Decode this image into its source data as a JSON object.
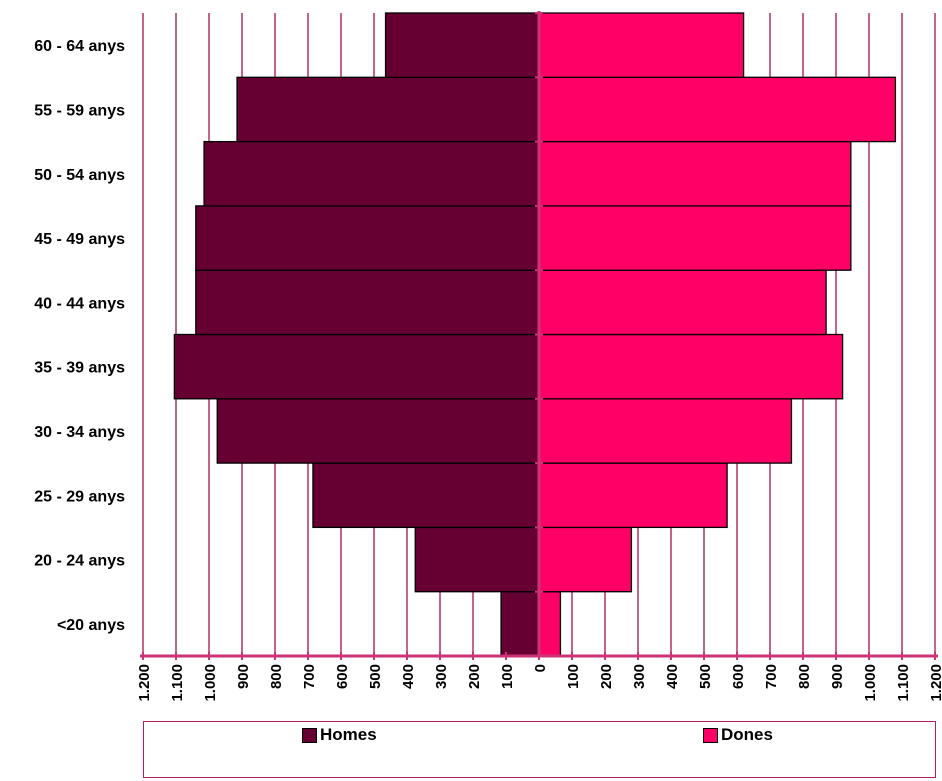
{
  "chart_data": {
    "type": "bar",
    "orientation": "horizontal",
    "chart_style": "population-pyramid",
    "categories": [
      "<20 anys",
      "20 - 24 anys",
      "25 - 29 anys",
      "30 - 34 anys",
      "35 - 39 anys",
      "40 - 44 anys",
      "45 - 49 anys",
      "50 - 54 anys",
      "55 - 59 anys",
      "60 - 64 anys"
    ],
    "series": [
      {
        "name": "Homes",
        "color": "#660033",
        "side": "left",
        "values": [
          115,
          375,
          685,
          975,
          1105,
          1040,
          1040,
          1015,
          915,
          465
        ]
      },
      {
        "name": "Dones",
        "color": "#ff0066",
        "side": "right",
        "values": [
          65,
          280,
          570,
          765,
          920,
          870,
          945,
          945,
          1080,
          620
        ]
      }
    ],
    "xlim": [
      -1200,
      1200
    ],
    "tick_step": 100,
    "x_tick_labels": [
      "1.200",
      "1.100",
      "1.000",
      "900",
      "800",
      "700",
      "600",
      "500",
      "400",
      "300",
      "200",
      "100",
      "0",
      "100",
      "200",
      "300",
      "400",
      "500",
      "600",
      "700",
      "800",
      "900",
      "1.000",
      "1.100",
      "1.200"
    ],
    "grid": "vertical",
    "grid_color": "#990033",
    "axis_color": "#cc3377",
    "legend": "bottom",
    "title": "",
    "xlabel": "",
    "ylabel": ""
  },
  "legend": {
    "items": [
      {
        "label": "Homes",
        "color": "#660033"
      },
      {
        "label": "Dones",
        "color": "#ff0066"
      }
    ]
  }
}
